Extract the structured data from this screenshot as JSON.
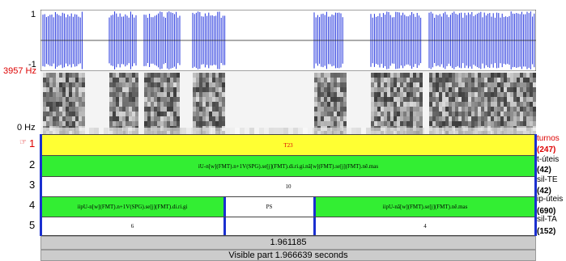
{
  "signal": {
    "wave_max": "1",
    "wave_min": "-1",
    "freq_max": "3957 Hz",
    "freq_min": "0 Hz"
  },
  "tiers": [
    {
      "number": "1",
      "name": "turnos",
      "count": "(247)",
      "intervals": [
        "T23"
      ]
    },
    {
      "number": "2",
      "name": "t-úteis",
      "count": "(42)",
      "intervals": [
        "iU-n[w](FMT).n+1V(SPG).se[j](FMT).di.ri.gi.nã[w](FMT).se[j](FMT).nê.mas"
      ]
    },
    {
      "number": "3",
      "name": "sil-TE",
      "count": "(42)",
      "intervals": [
        "10"
      ]
    },
    {
      "number": "4",
      "name": "ip-úteis",
      "count": "(690)",
      "intervals": [
        "iipU-n[w](FMT).n+1V(SPG).se[j](FMT).di.ri.gi",
        "PS",
        "iipU-nã[w](FMT).se[j](FMT).nê.mas"
      ]
    },
    {
      "number": "5",
      "name": "sil-TA",
      "count": "(152)",
      "intervals": [
        "6",
        "4"
      ]
    }
  ],
  "cursor_time": "1.961185",
  "visible_part": "Visible part 1.966639 seconds"
}
